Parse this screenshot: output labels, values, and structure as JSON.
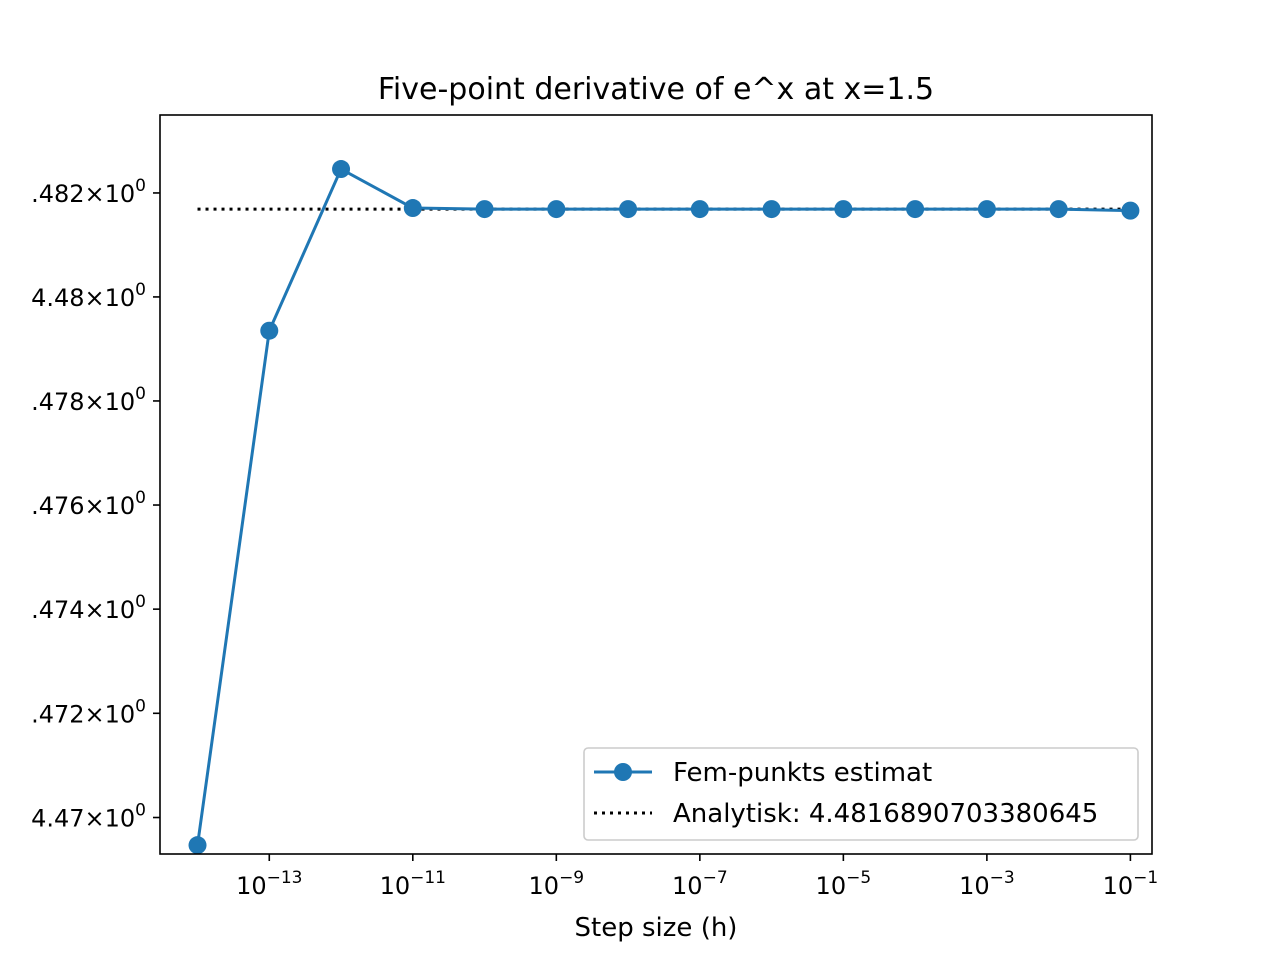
{
  "chart_data": {
    "type": "line",
    "title": "Five-point derivative of e^x at x=1.5",
    "xlabel": "Step size (h)",
    "ylabel": "",
    "xscale": "log",
    "yscale": "log",
    "xlim": [
      3e-15,
      0.2
    ],
    "ylim": [
      4.4693,
      4.4835
    ],
    "x": [
      1e-14,
      1e-13,
      1e-12,
      1e-11,
      1e-10,
      1e-09,
      1e-08,
      1e-07,
      1e-06,
      1e-05,
      0.0001,
      0.001,
      0.01,
      0.1
    ],
    "x_ticks": [
      {
        "value": 1e-13,
        "base": "10",
        "exp": "−13"
      },
      {
        "value": 1e-11,
        "base": "10",
        "exp": "−11"
      },
      {
        "value": 1e-09,
        "base": "10",
        "exp": "−9"
      },
      {
        "value": 1e-07,
        "base": "10",
        "exp": "−7"
      },
      {
        "value": 1e-05,
        "base": "10",
        "exp": "−5"
      },
      {
        "value": 0.001,
        "base": "10",
        "exp": "−3"
      },
      {
        "value": 0.1,
        "base": "10",
        "exp": "−1"
      }
    ],
    "y_ticks": [
      {
        "value": 4.47,
        "mantissa": "4.47",
        "exp": "0"
      },
      {
        "value": 4.472,
        "mantissa": ".472",
        "exp": "0"
      },
      {
        "value": 4.474,
        "mantissa": ".474",
        "exp": "0"
      },
      {
        "value": 4.476,
        "mantissa": ".476",
        "exp": "0"
      },
      {
        "value": 4.478,
        "mantissa": ".478",
        "exp": "0"
      },
      {
        "value": 4.48,
        "mantissa": "4.48",
        "exp": "0"
      },
      {
        "value": 4.482,
        "mantissa": ".482",
        "exp": "0"
      }
    ],
    "series": [
      {
        "name": "Fem-punkts estimat",
        "color": "#1f77b4",
        "style": "solid",
        "marker": "circle",
        "values": [
          4.46947,
          4.47935,
          4.48246,
          4.48171,
          4.48169,
          4.48169,
          4.48169,
          4.48169,
          4.48169,
          4.48169,
          4.48169,
          4.48169,
          4.48169,
          4.48166
        ]
      },
      {
        "name": "Analytisk: 4.4816890703380645",
        "color": "#000000",
        "style": "dotted",
        "marker": "none",
        "values": [
          4.4816890703380645,
          4.4816890703380645,
          4.4816890703380645,
          4.4816890703380645,
          4.4816890703380645,
          4.4816890703380645,
          4.4816890703380645,
          4.4816890703380645,
          4.4816890703380645,
          4.4816890703380645,
          4.4816890703380645,
          4.4816890703380645,
          4.4816890703380645,
          4.4816890703380645
        ]
      }
    ],
    "legend_position": "lower-right",
    "grid": false
  }
}
